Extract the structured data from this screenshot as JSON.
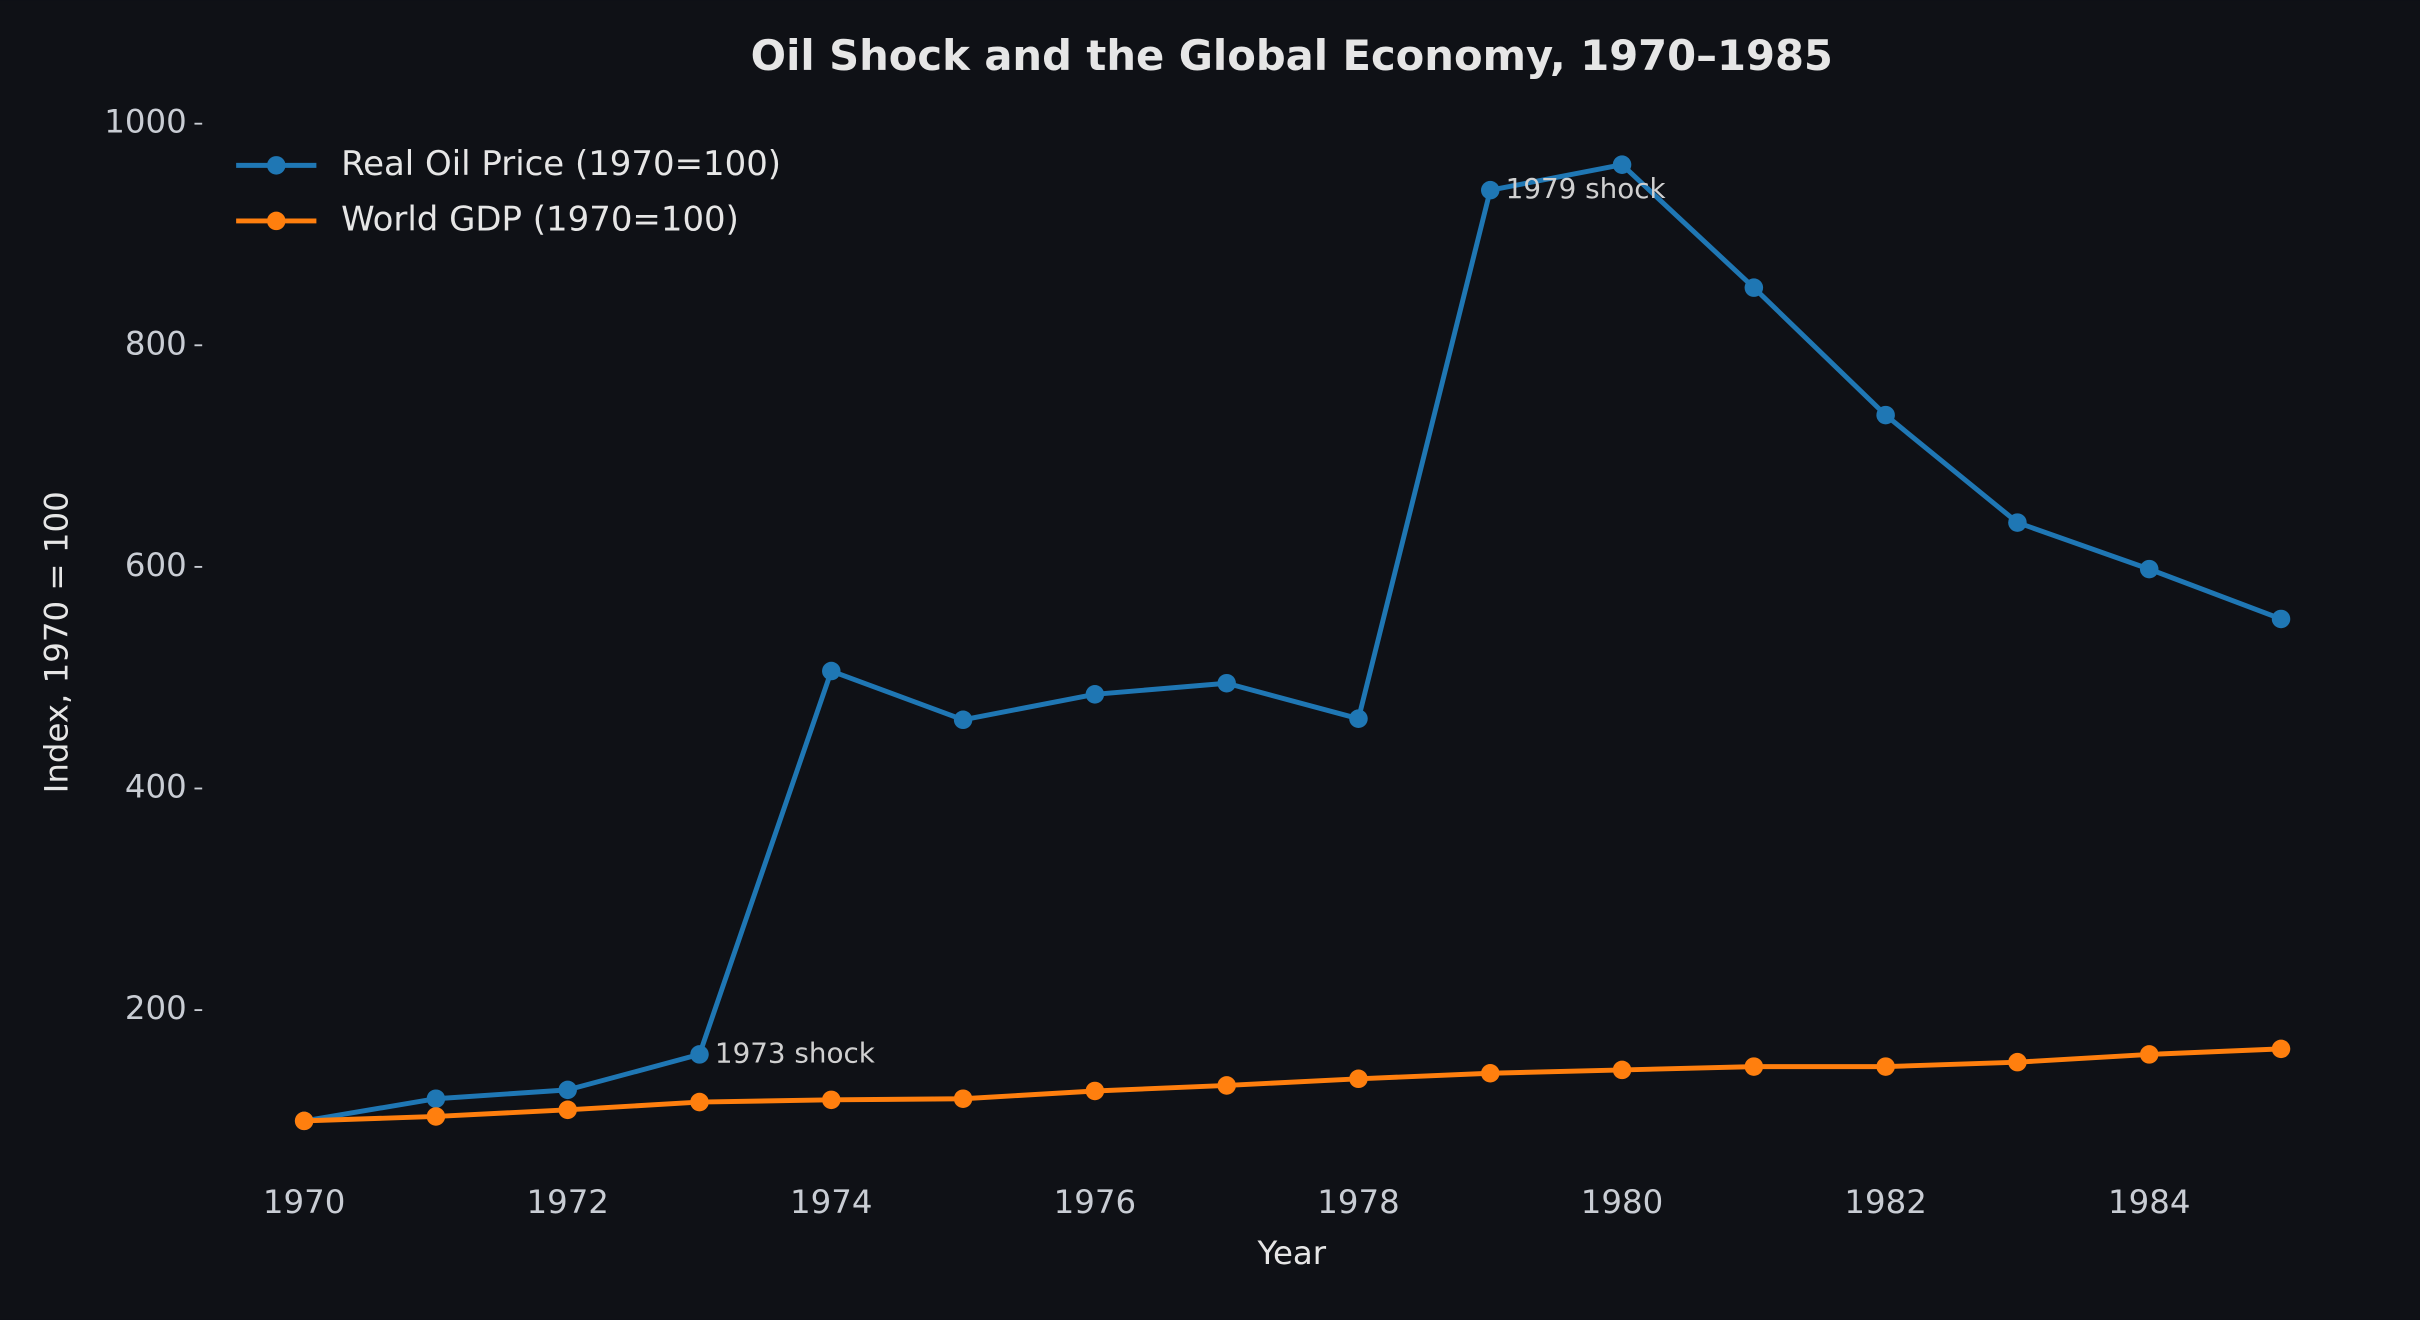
{
  "chart_data": {
    "type": "line",
    "title": "Oil Shock and the Global Economy, 1970–1985",
    "x_label": "Year",
    "y_label": "Index, 1970 = 100",
    "x": [
      1970,
      1971,
      1972,
      1973,
      1974,
      1975,
      1976,
      1977,
      1978,
      1979,
      1980,
      1981,
      1982,
      1983,
      1984,
      1985
    ],
    "series": [
      {
        "name": "Real Oil Price (1970=100)",
        "color": "#1f77b4",
        "values": [
          100,
          120,
          128,
          160,
          506,
          462,
          485,
          495,
          463,
          940,
          963,
          852,
          737,
          640,
          598,
          553
        ]
      },
      {
        "name": "World GDP (1970=100)",
        "color": "#ff7f0e",
        "values": [
          100,
          104,
          110,
          117,
          119,
          120,
          127,
          132,
          138,
          143,
          146,
          149,
          149,
          153,
          160,
          165
        ]
      }
    ],
    "annotations": [
      {
        "text": "1973 shock",
        "x": 1973,
        "y": 160
      },
      {
        "text": "1979 shock",
        "x": 1979,
        "y": 940
      }
    ],
    "xlim": [
      1969.25,
      1985.75
    ],
    "xticks": [
      1970,
      1972,
      1974,
      1976,
      1978,
      1980,
      1982,
      1984
    ],
    "ylim": [
      57,
      1006
    ],
    "yticks": [
      200,
      400,
      600,
      800,
      1000
    ],
    "grid": false,
    "legend": "upper left"
  }
}
